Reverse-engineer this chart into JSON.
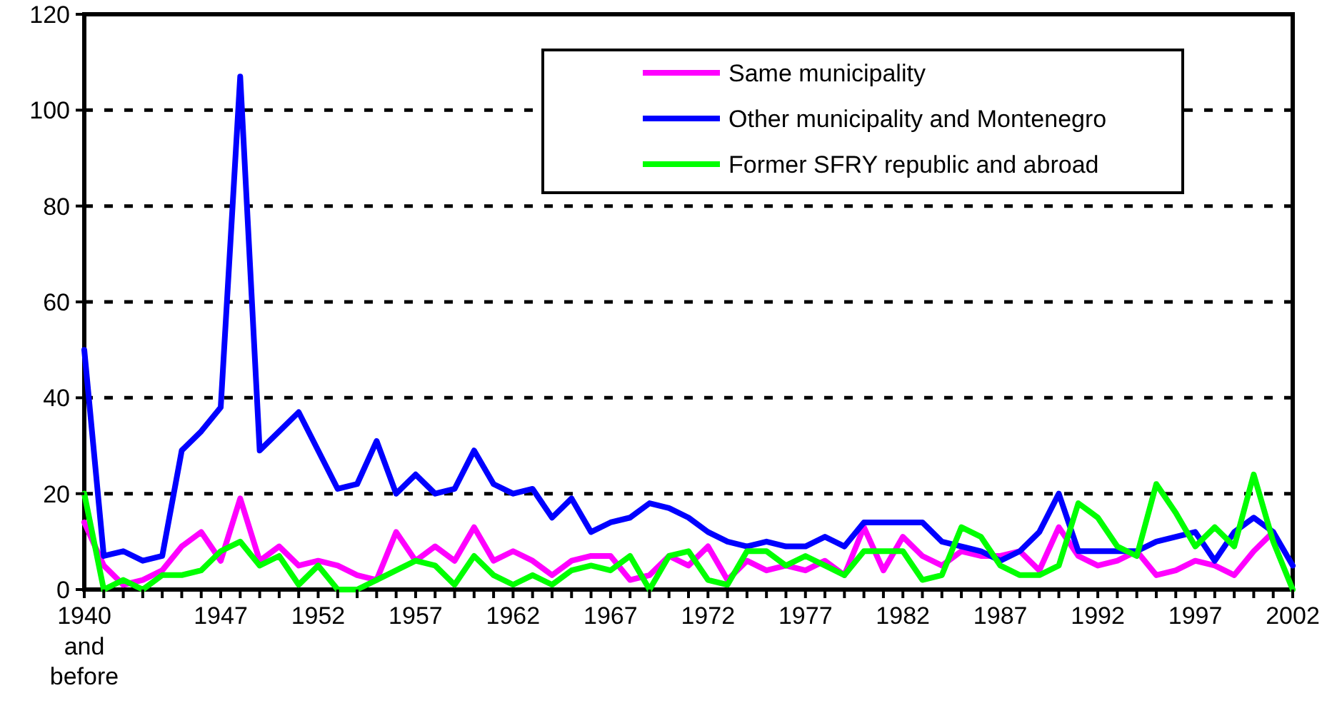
{
  "chart_data": {
    "type": "line",
    "x": [
      1940,
      1941,
      1942,
      1943,
      1944,
      1945,
      1946,
      1947,
      1948,
      1949,
      1950,
      1951,
      1952,
      1953,
      1954,
      1955,
      1956,
      1957,
      1958,
      1959,
      1960,
      1961,
      1962,
      1963,
      1964,
      1965,
      1966,
      1967,
      1968,
      1969,
      1970,
      1971,
      1972,
      1973,
      1974,
      1975,
      1976,
      1977,
      1978,
      1979,
      1980,
      1981,
      1982,
      1983,
      1984,
      1985,
      1986,
      1987,
      1988,
      1989,
      1990,
      1991,
      1992,
      1993,
      1994,
      1995,
      1996,
      1997,
      1998,
      1999,
      2000,
      2001,
      2002
    ],
    "series": [
      {
        "name": "Same municipality",
        "color": "#ff00ff",
        "values": [
          14,
          5,
          1,
          2,
          4,
          9,
          12,
          6,
          19,
          6,
          9,
          5,
          6,
          5,
          3,
          2,
          12,
          6,
          9,
          6,
          13,
          6,
          8,
          6,
          3,
          6,
          7,
          7,
          2,
          3,
          7,
          5,
          9,
          2,
          6,
          4,
          5,
          4,
          6,
          3,
          13,
          4,
          11,
          7,
          5,
          8,
          7,
          7,
          8,
          4,
          13,
          7,
          5,
          6,
          8,
          3,
          4,
          6,
          5,
          3,
          8,
          12,
          null
        ]
      },
      {
        "name": "Other municipality and Montenegro",
        "color": "#0000ff",
        "values": [
          50,
          7,
          8,
          6,
          7,
          29,
          33,
          38,
          107,
          29,
          33,
          37,
          29,
          21,
          22,
          31,
          20,
          24,
          20,
          21,
          29,
          22,
          20,
          21,
          15,
          19,
          12,
          14,
          15,
          18,
          17,
          15,
          12,
          10,
          9,
          10,
          9,
          9,
          11,
          9,
          14,
          14,
          14,
          14,
          10,
          9,
          8,
          6,
          8,
          12,
          20,
          8,
          8,
          8,
          8,
          10,
          11,
          12,
          6,
          12,
          15,
          12,
          5
        ]
      },
      {
        "name": "Former SFRY republic and abroad",
        "color": "#00ff00",
        "values": [
          20,
          0,
          2,
          0,
          3,
          3,
          4,
          8,
          10,
          5,
          7,
          1,
          5,
          0,
          0,
          2,
          4,
          6,
          5,
          1,
          7,
          3,
          1,
          3,
          1,
          4,
          5,
          4,
          7,
          0,
          7,
          8,
          2,
          1,
          8,
          8,
          5,
          7,
          5,
          3,
          8,
          8,
          8,
          2,
          3,
          13,
          11,
          5,
          3,
          3,
          5,
          18,
          15,
          9,
          7,
          22,
          16,
          9,
          13,
          9,
          24,
          10,
          0
        ]
      }
    ],
    "xlim": [
      1940,
      2002
    ],
    "xticks": [
      {
        "value": 1940,
        "label": "1940 and before"
      },
      {
        "value": 1941,
        "label": null
      },
      {
        "value": 1942,
        "label": null
      },
      {
        "value": 1943,
        "label": null
      },
      {
        "value": 1944,
        "label": null
      },
      {
        "value": 1945,
        "label": null
      },
      {
        "value": 1946,
        "label": null
      },
      1947,
      {
        "value": 1948,
        "label": null
      },
      {
        "value": 1949,
        "label": null
      },
      {
        "value": 1950,
        "label": null
      },
      {
        "value": 1951,
        "label": null
      },
      1952,
      {
        "value": 1953,
        "label": null
      },
      {
        "value": 1954,
        "label": null
      },
      {
        "value": 1955,
        "label": null
      },
      {
        "value": 1956,
        "label": null
      },
      1957,
      {
        "value": 1958,
        "label": null
      },
      {
        "value": 1959,
        "label": null
      },
      {
        "value": 1960,
        "label": null
      },
      {
        "value": 1961,
        "label": null
      },
      1962,
      {
        "value": 1963,
        "label": null
      },
      {
        "value": 1964,
        "label": null
      },
      {
        "value": 1965,
        "label": null
      },
      {
        "value": 1966,
        "label": null
      },
      1967,
      {
        "value": 1968,
        "label": null
      },
      {
        "value": 1969,
        "label": null
      },
      {
        "value": 1970,
        "label": null
      },
      {
        "value": 1971,
        "label": null
      },
      1972,
      {
        "value": 1973,
        "label": null
      },
      {
        "value": 1974,
        "label": null
      },
      {
        "value": 1975,
        "label": null
      },
      {
        "value": 1976,
        "label": null
      },
      1977,
      {
        "value": 1978,
        "label": null
      },
      {
        "value": 1979,
        "label": null
      },
      {
        "value": 1980,
        "label": null
      },
      {
        "value": 1981,
        "label": null
      },
      1982,
      {
        "value": 1983,
        "label": null
      },
      {
        "value": 1984,
        "label": null
      },
      {
        "value": 1985,
        "label": null
      },
      {
        "value": 1986,
        "label": null
      },
      1987,
      {
        "value": 1988,
        "label": null
      },
      {
        "value": 1989,
        "label": null
      },
      {
        "value": 1990,
        "label": null
      },
      {
        "value": 1991,
        "label": null
      },
      1992,
      {
        "value": 1993,
        "label": null
      },
      {
        "value": 1994,
        "label": null
      },
      {
        "value": 1995,
        "label": null
      },
      {
        "value": 1996,
        "label": null
      },
      1997,
      {
        "value": 1998,
        "label": null
      },
      {
        "value": 1999,
        "label": null
      },
      {
        "value": 2000,
        "label": null
      },
      {
        "value": 2001,
        "label": null
      },
      2002
    ],
    "ylim": [
      0,
      120
    ],
    "yticks": [
      0,
      20,
      40,
      60,
      80,
      100,
      120
    ],
    "grid": "y",
    "legend": "top right",
    "marker": "none",
    "line_style": "solid"
  }
}
